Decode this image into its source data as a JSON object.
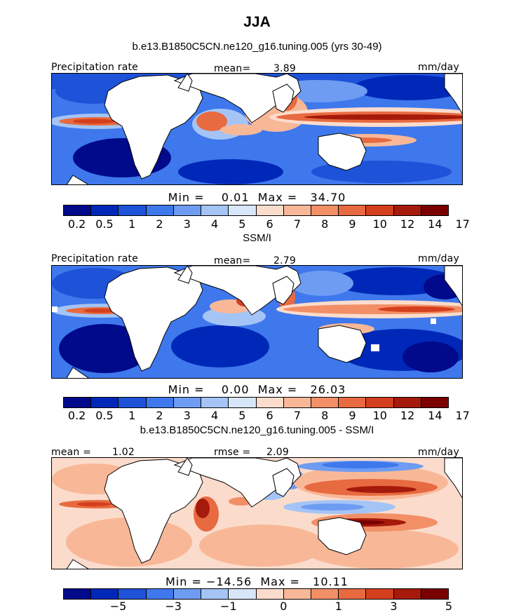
{
  "title": "JJA",
  "colorbar_colors": [
    "#000a8a",
    "#0028b8",
    "#1e52d9",
    "#3e78ec",
    "#6e9cf2",
    "#a4c4f6",
    "#d8e6fa",
    "#fbdccc",
    "#f8b898",
    "#f28f66",
    "#e86a40",
    "#d43f1e",
    "#a61a0c",
    "#7a0000"
  ],
  "chart_data": [
    {
      "type": "heatmap",
      "title": "b.e13.B1850C5CN.ne120_g16.tuning.005 (yrs 30-49)",
      "variable": "Precipitation rate",
      "units": "mm/day",
      "mean_label": "mean=",
      "mean": "3.89",
      "min_max": "Min =    0.01  Max =   34.70",
      "min": 0.01,
      "max": 34.7,
      "levels": [
        "0.2",
        "0.5",
        "1",
        "2",
        "3",
        "4",
        "5",
        "6",
        "7",
        "8",
        "9",
        "10",
        "12",
        "14",
        "17"
      ]
    },
    {
      "type": "heatmap",
      "title": "SSM/I",
      "variable": "Precipitation rate",
      "units": "mm/day",
      "mean_label": "mean=",
      "mean": "2.79",
      "min_max": "Min =    0.00  Max =   26.03",
      "min": 0.0,
      "max": 26.03,
      "levels": [
        "0.2",
        "0.5",
        "1",
        "2",
        "3",
        "4",
        "5",
        "6",
        "7",
        "8",
        "9",
        "10",
        "12",
        "14",
        "17"
      ]
    },
    {
      "type": "heatmap",
      "title": "b.e13.B1850C5CN.ne120_g16.tuning.005 - SSM/I",
      "units": "mm/day",
      "mean_label": "mean =",
      "mean": "1.02",
      "rmse_label": "rmse =",
      "rmse": "2.09",
      "min_max": "Min = −14.56  Max =   10.11",
      "min": -14.56,
      "max": 10.11,
      "levels": [
        "−5",
        "−3",
        "−1",
        "0",
        "1",
        "3",
        "5"
      ]
    }
  ]
}
